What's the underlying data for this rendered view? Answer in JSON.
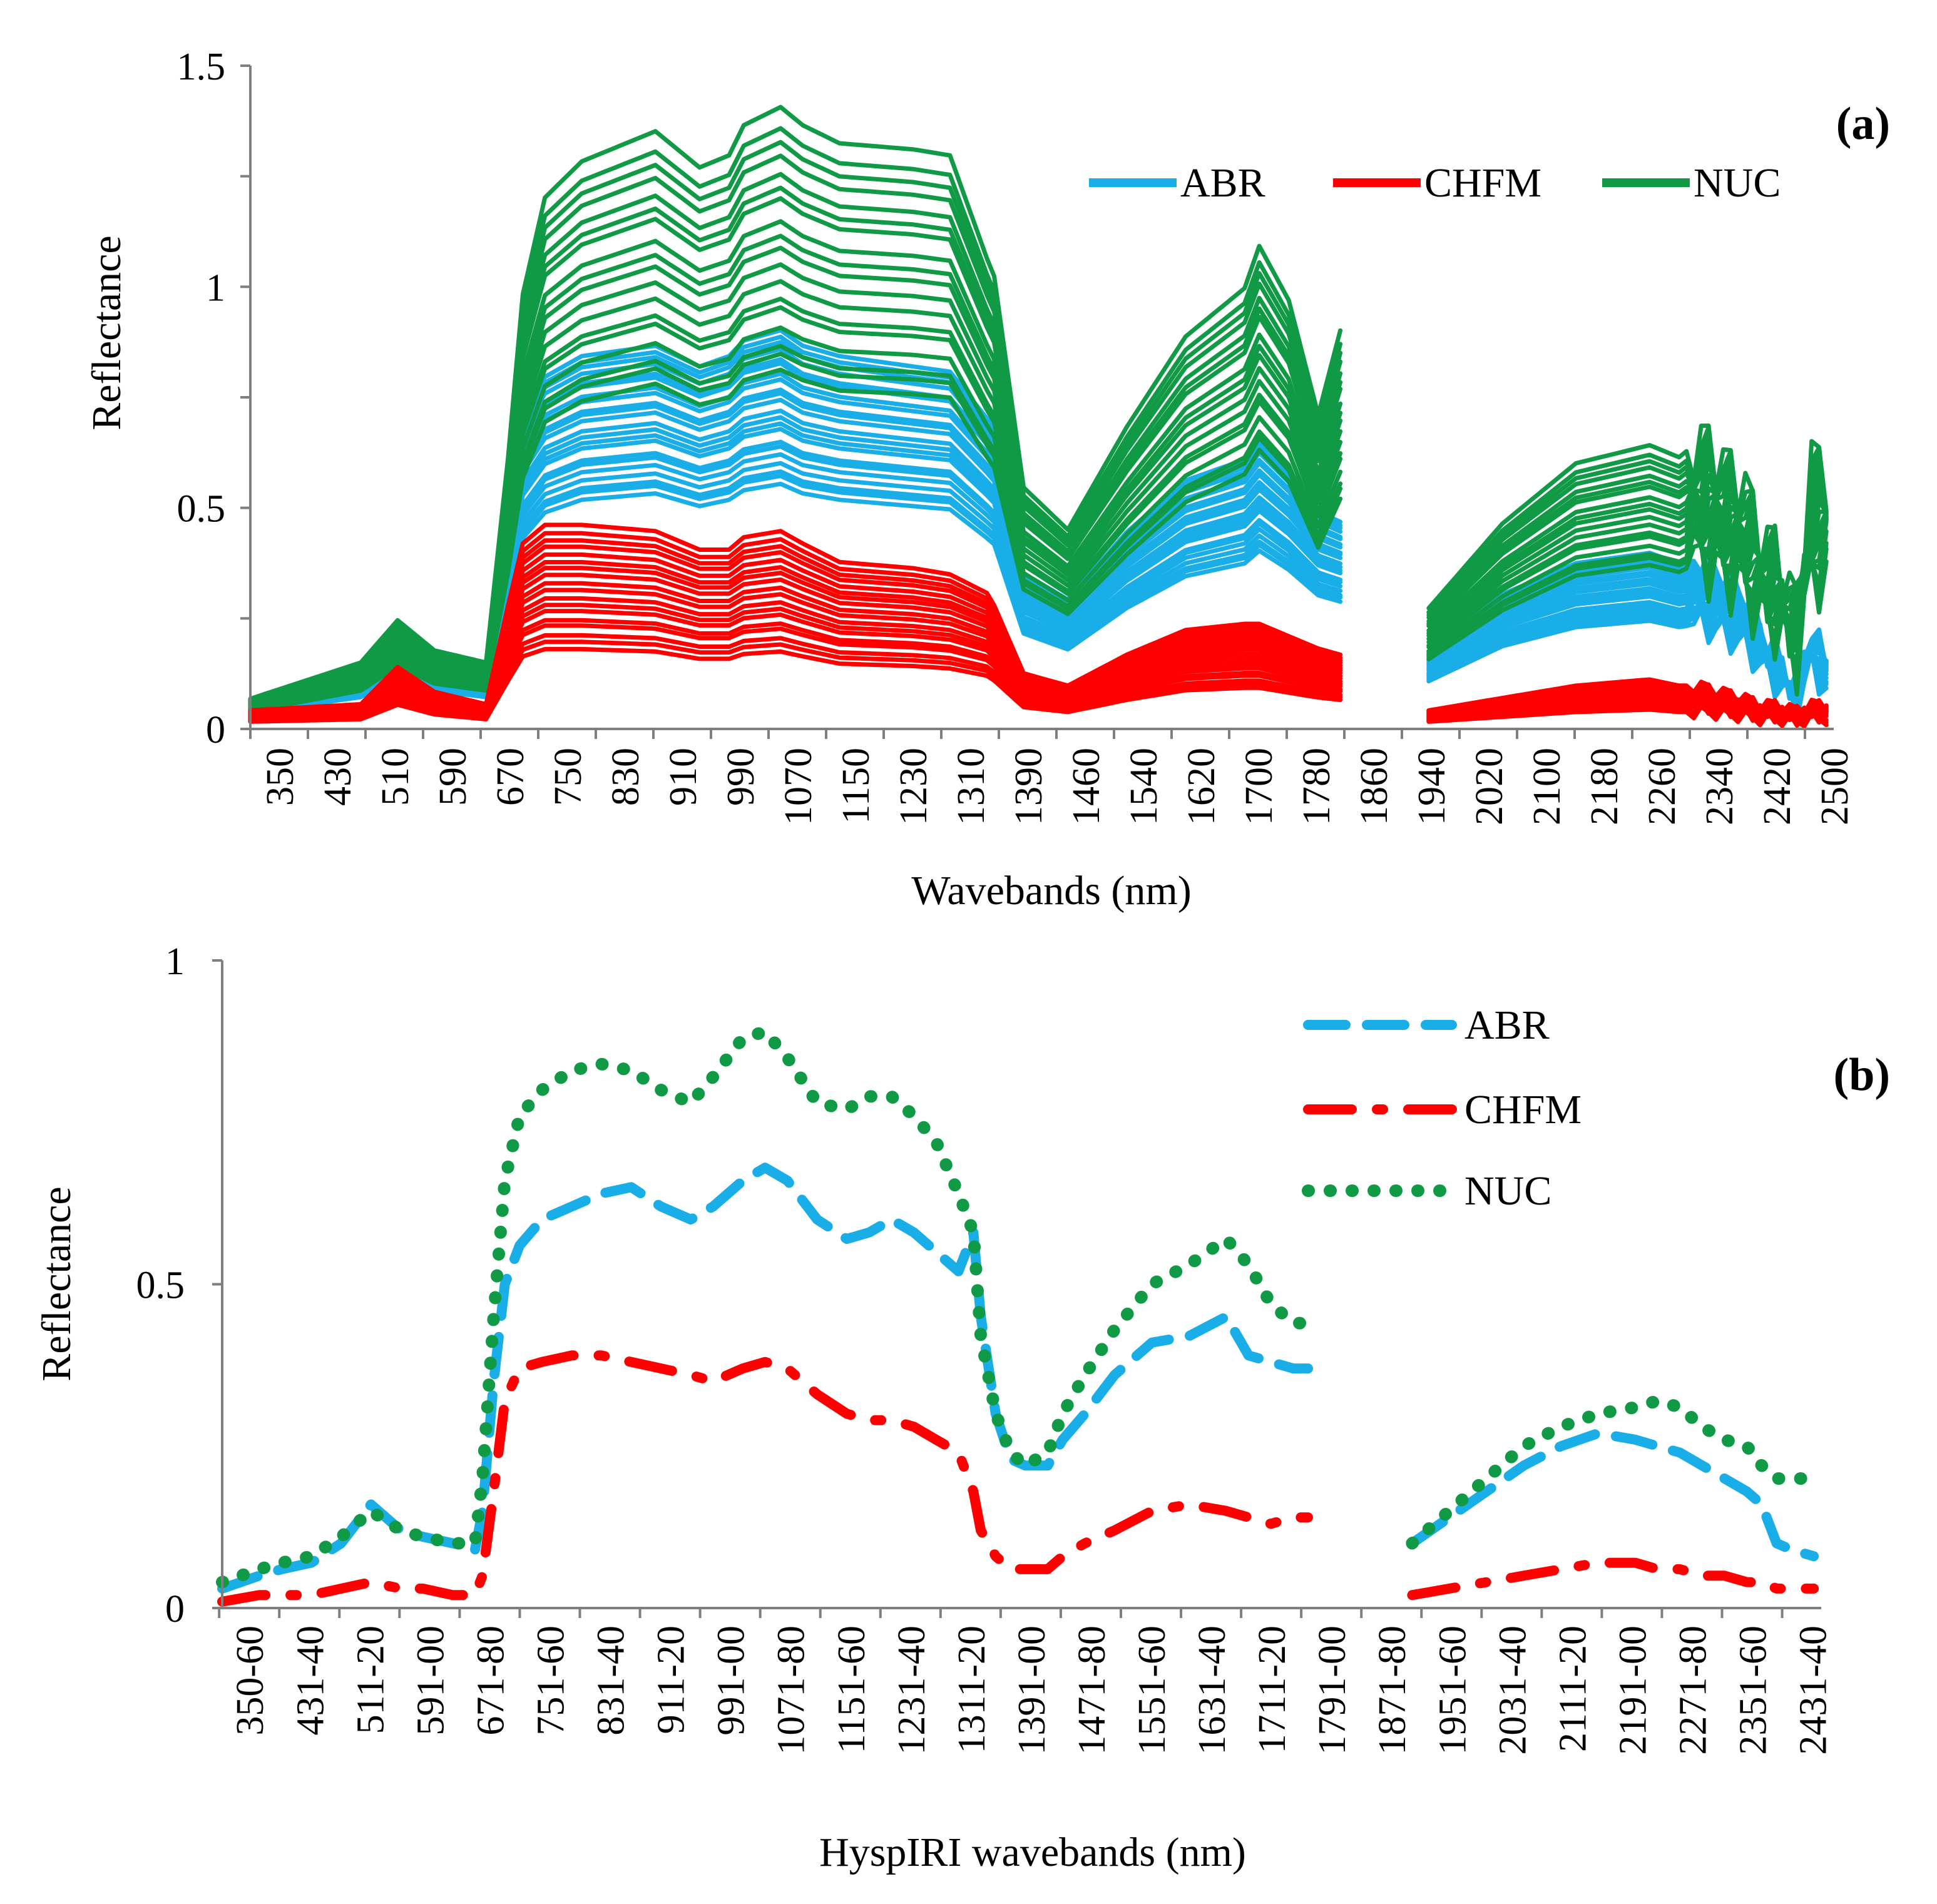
{
  "chart_data": [
    {
      "type": "line",
      "panel_label": "(a)",
      "title": "",
      "xlabel": "Wavebands (nm)",
      "ylabel": "Reflectance",
      "ylim": [
        0,
        1.5
      ],
      "y_ticks": [
        "0",
        "0.5",
        "1",
        "1.5"
      ],
      "y_minor_step": 0.25,
      "categories": [
        "350",
        "430",
        "510",
        "590",
        "670",
        "750",
        "830",
        "910",
        "990",
        "1070",
        "1150",
        "1230",
        "1310",
        "1390",
        "1460",
        "1540",
        "1620",
        "1700",
        "1780",
        "1860",
        "1940",
        "2020",
        "2100",
        "2180",
        "2260",
        "2340",
        "2420",
        "2500"
      ],
      "x_min": 350,
      "x_max": 2500,
      "legend": [
        "ABR",
        "CHFM",
        "NUC"
      ],
      "legend_position": "top-right",
      "colors": {
        "ABR": "#1aaee8",
        "CHFM": "#ff0000",
        "NUC": "#119a45"
      },
      "gap_nm": [
        1830,
        1950
      ],
      "reference_spectra": {
        "x": [
          350,
          500,
          550,
          600,
          670,
          700,
          720,
          750,
          800,
          900,
          960,
          1000,
          1020,
          1070,
          1100,
          1150,
          1250,
          1300,
          1350,
          1360,
          1400,
          1460,
          1540,
          1620,
          1700,
          1720,
          1760,
          1800,
          1830,
          1950,
          2050,
          2150,
          2250,
          2290,
          2320,
          2350,
          2380,
          2400,
          2420,
          2450,
          2470,
          2490
        ],
        "NUC_mean": [
          0.05,
          0.11,
          0.18,
          0.13,
          0.11,
          0.45,
          0.72,
          0.88,
          0.94,
          0.99,
          0.93,
          0.95,
          1.0,
          1.03,
          1.0,
          0.97,
          0.96,
          0.95,
          0.78,
          0.75,
          0.4,
          0.33,
          0.5,
          0.65,
          0.73,
          0.8,
          0.71,
          0.52,
          0.66,
          0.2,
          0.34,
          0.44,
          0.47,
          0.45,
          0.48,
          0.44,
          0.4,
          0.32,
          0.3,
          0.2,
          0.45,
          0.42
        ],
        "ABR_mean": [
          0.05,
          0.1,
          0.17,
          0.12,
          0.1,
          0.4,
          0.6,
          0.68,
          0.72,
          0.74,
          0.7,
          0.72,
          0.75,
          0.77,
          0.74,
          0.72,
          0.7,
          0.69,
          0.6,
          0.58,
          0.3,
          0.25,
          0.38,
          0.48,
          0.52,
          0.56,
          0.5,
          0.42,
          0.4,
          0.15,
          0.26,
          0.32,
          0.34,
          0.32,
          0.33,
          0.3,
          0.26,
          0.2,
          0.15,
          0.08,
          0.2,
          0.12
        ],
        "CHFM_mean": [
          0.03,
          0.04,
          0.1,
          0.06,
          0.04,
          0.2,
          0.3,
          0.33,
          0.33,
          0.32,
          0.29,
          0.29,
          0.31,
          0.32,
          0.3,
          0.27,
          0.26,
          0.25,
          0.22,
          0.2,
          0.09,
          0.07,
          0.12,
          0.16,
          0.17,
          0.17,
          0.15,
          0.13,
          0.12,
          0.03,
          0.05,
          0.07,
          0.08,
          0.07,
          0.07,
          0.06,
          0.05,
          0.04,
          0.04,
          0.03,
          0.04,
          0.04
        ]
      }
    },
    {
      "type": "line",
      "panel_label": "(b)",
      "title": "",
      "xlabel": "HyspIRI wavebands (nm)",
      "ylabel": "Reflectance",
      "ylim": [
        0,
        1
      ],
      "y_ticks": [
        "0",
        "0.5",
        "1"
      ],
      "categories": [
        "350-60",
        "431-40",
        "511-20",
        "591-00",
        "671-80",
        "751-60",
        "831-40",
        "911-20",
        "991-00",
        "1071-80",
        "1151-60",
        "1231-40",
        "1311-20",
        "1391-00",
        "1471-80",
        "1551-60",
        "1631-40",
        "1711-20",
        "1791-00",
        "1871-80",
        "1951-60",
        "2031-40",
        "2111-20",
        "2191-00",
        "2271-80",
        "2351-60",
        "2431-40"
      ],
      "x_min": 350,
      "x_max": 2500,
      "legend": [
        "ABR",
        "CHFM",
        "NUC"
      ],
      "legend_position": "top-right",
      "series": [
        {
          "name": "ABR",
          "style": "dashed",
          "color": "#1aaee8",
          "x": [
            350,
            400,
            430,
            470,
            510,
            550,
            590,
            620,
            660,
            690,
            700,
            715,
            730,
            750,
            780,
            820,
            860,
            900,
            940,
            980,
            1010,
            1050,
            1080,
            1110,
            1150,
            1190,
            1220,
            1250,
            1280,
            1310,
            1340,
            1360,
            1370,
            1390,
            1410,
            1430,
            1460,
            1480,
            1510,
            1550,
            1600,
            1650,
            1700,
            1730,
            1760,
            1790,
            1810,
            null,
            1950,
            2000,
            2050,
            2100,
            2150,
            2200,
            2250,
            2280,
            2310,
            2340,
            2370,
            2400,
            2420,
            2440,
            2460,
            2490
          ],
          "values": [
            0.03,
            0.05,
            0.06,
            0.07,
            0.1,
            0.16,
            0.12,
            0.11,
            0.1,
            0.09,
            0.15,
            0.35,
            0.5,
            0.56,
            0.6,
            0.62,
            0.64,
            0.65,
            0.62,
            0.6,
            0.62,
            0.66,
            0.68,
            0.66,
            0.6,
            0.57,
            0.58,
            0.6,
            0.58,
            0.55,
            0.52,
            0.58,
            0.45,
            0.3,
            0.23,
            0.22,
            0.22,
            0.26,
            0.3,
            0.36,
            0.41,
            0.42,
            0.45,
            0.39,
            0.38,
            0.37,
            0.37,
            null,
            0.1,
            0.14,
            0.18,
            0.22,
            0.25,
            0.27,
            0.26,
            0.25,
            0.24,
            0.22,
            0.2,
            0.18,
            0.16,
            0.1,
            0.09,
            0.08
          ]
        },
        {
          "name": "CHFM",
          "style": "dash-dot",
          "color": "#ff0000",
          "x": [
            350,
            400,
            430,
            470,
            510,
            550,
            590,
            620,
            660,
            690,
            700,
            715,
            730,
            750,
            780,
            820,
            860,
            900,
            940,
            980,
            1010,
            1050,
            1080,
            1110,
            1150,
            1190,
            1220,
            1250,
            1280,
            1310,
            1340,
            1360,
            1370,
            1390,
            1410,
            1430,
            1460,
            1480,
            1510,
            1550,
            1600,
            1650,
            1700,
            1730,
            1760,
            1790,
            1810,
            null,
            1950,
            2000,
            2050,
            2100,
            2150,
            2200,
            2250,
            2280,
            2310,
            2340,
            2370,
            2400,
            2420,
            2440,
            2460,
            2490
          ],
          "values": [
            0.01,
            0.02,
            0.02,
            0.02,
            0.03,
            0.04,
            0.03,
            0.03,
            0.02,
            0.02,
            0.05,
            0.18,
            0.32,
            0.37,
            0.38,
            0.39,
            0.39,
            0.38,
            0.37,
            0.36,
            0.35,
            0.37,
            0.38,
            0.37,
            0.33,
            0.3,
            0.29,
            0.29,
            0.28,
            0.26,
            0.24,
            0.18,
            0.12,
            0.08,
            0.06,
            0.06,
            0.06,
            0.08,
            0.1,
            0.12,
            0.15,
            0.16,
            0.15,
            0.14,
            0.13,
            0.14,
            0.14,
            null,
            0.02,
            0.03,
            0.04,
            0.05,
            0.06,
            0.07,
            0.07,
            0.06,
            0.06,
            0.05,
            0.05,
            0.04,
            0.04,
            0.03,
            0.03,
            0.03
          ]
        },
        {
          "name": "NUC",
          "style": "dotted",
          "color": "#119a45",
          "x": [
            350,
            400,
            430,
            470,
            510,
            550,
            590,
            620,
            660,
            690,
            700,
            715,
            730,
            750,
            780,
            820,
            860,
            900,
            940,
            980,
            1010,
            1050,
            1080,
            1110,
            1150,
            1190,
            1220,
            1250,
            1280,
            1310,
            1340,
            1360,
            1370,
            1390,
            1410,
            1430,
            1460,
            1480,
            1510,
            1550,
            1600,
            1650,
            1700,
            1730,
            1760,
            1790,
            1810,
            null,
            1950,
            2000,
            2050,
            2100,
            2150,
            2200,
            2250,
            2280,
            2310,
            2340,
            2370,
            2400,
            2420,
            2440,
            2460,
            2490
          ],
          "values": [
            0.04,
            0.06,
            0.07,
            0.08,
            0.11,
            0.15,
            0.12,
            0.11,
            0.1,
            0.1,
            0.2,
            0.45,
            0.66,
            0.76,
            0.8,
            0.83,
            0.84,
            0.83,
            0.8,
            0.78,
            0.82,
            0.88,
            0.89,
            0.85,
            0.78,
            0.77,
            0.79,
            0.79,
            0.76,
            0.72,
            0.64,
            0.58,
            0.42,
            0.3,
            0.24,
            0.22,
            0.24,
            0.3,
            0.36,
            0.43,
            0.5,
            0.53,
            0.57,
            0.53,
            0.47,
            0.44,
            0.44,
            null,
            0.1,
            0.15,
            0.2,
            0.25,
            0.28,
            0.3,
            0.31,
            0.32,
            0.31,
            0.28,
            0.26,
            0.25,
            0.22,
            0.2,
            0.2,
            0.2
          ]
        }
      ]
    }
  ]
}
